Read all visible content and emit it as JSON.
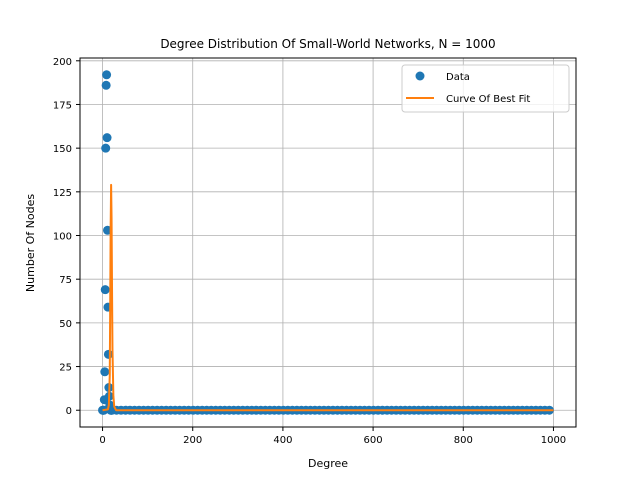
{
  "chart_data": {
    "type": "scatter",
    "title": "Degree Distribution Of Small-World Networks, N = 1000",
    "xlabel": "Degree",
    "ylabel": "Number Of Nodes",
    "xlim": [
      -50,
      1050
    ],
    "ylim": [
      -9.6,
      201.6
    ],
    "xticks": [
      0,
      200,
      400,
      600,
      800,
      1000
    ],
    "yticks": [
      0,
      25,
      50,
      75,
      100,
      125,
      150,
      175,
      200
    ],
    "grid": true,
    "legend_position": "top-right",
    "series": [
      {
        "name": "Data",
        "kind": "scatter",
        "color": "#1f77b4",
        "points": [
          [
            0,
            0
          ],
          [
            1,
            0
          ],
          [
            2,
            0
          ],
          [
            3,
            0
          ],
          [
            4,
            6
          ],
          [
            5,
            22
          ],
          [
            6,
            69
          ],
          [
            7,
            150
          ],
          [
            8,
            186
          ],
          [
            9,
            192
          ],
          [
            10,
            156
          ],
          [
            11,
            103
          ],
          [
            12,
            59
          ],
          [
            13,
            32
          ],
          [
            14,
            13
          ],
          [
            15,
            8
          ],
          [
            16,
            3
          ],
          [
            17,
            1
          ],
          [
            18,
            0
          ],
          [
            19,
            0
          ],
          [
            20,
            0
          ]
        ],
        "tail": {
          "x_start": 21,
          "x_end": 1000,
          "step": 10,
          "y": 0
        }
      },
      {
        "name": "Curve Of Best Fit",
        "kind": "line",
        "color": "#ff7f0e",
        "points": [
          [
            0,
            0
          ],
          [
            12,
            0.5
          ],
          [
            14,
            3
          ],
          [
            16,
            20
          ],
          [
            17,
            60
          ],
          [
            18,
            105
          ],
          [
            19,
            129
          ],
          [
            20,
            110
          ],
          [
            21,
            70
          ],
          [
            22,
            35
          ],
          [
            24,
            8
          ],
          [
            26,
            2
          ],
          [
            30,
            0
          ],
          [
            1000,
            0
          ]
        ]
      }
    ]
  }
}
